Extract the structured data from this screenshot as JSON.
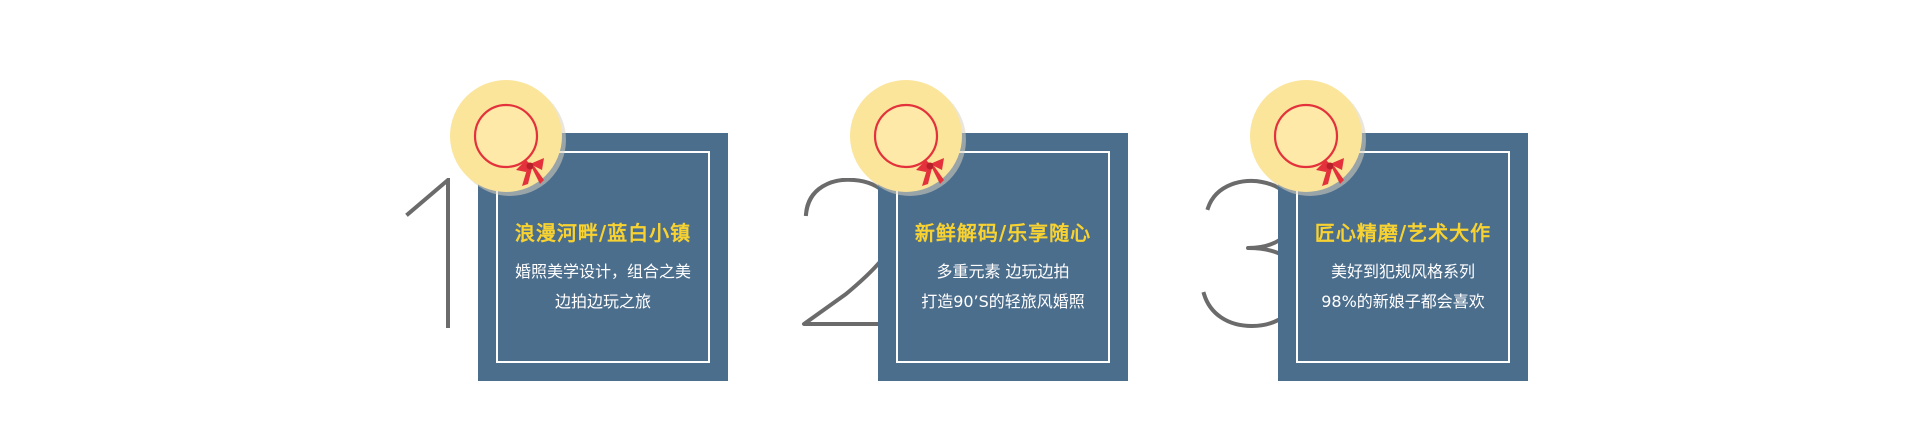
{
  "features": [
    {
      "number": "1",
      "title": "浪漫河畔/蓝白小镇",
      "lines": [
        "婚照美学设计，组合之美",
        "边拍边玩之旅"
      ],
      "icon": "sun-hat-icon"
    },
    {
      "number": "2",
      "title": "新鲜解码/乐享随心",
      "lines": [
        "多重元素 边玩边拍",
        "打造90’S的轻旅风婚照"
      ],
      "icon": "sun-hat-icon"
    },
    {
      "number": "3",
      "title": "匠心精磨/艺术大作",
      "lines": [
        "美好到犯规风格系列",
        "98%的新娘子都会喜欢"
      ],
      "icon": "sun-hat-icon"
    }
  ],
  "colors": {
    "card_background": "#4c6e8d",
    "title_text": "#f7d231",
    "body_text": "#ffffff",
    "hat_fill": "#fbe59b",
    "ribbon": "#e3323c",
    "numeral_stroke": "#6b6b6b"
  }
}
